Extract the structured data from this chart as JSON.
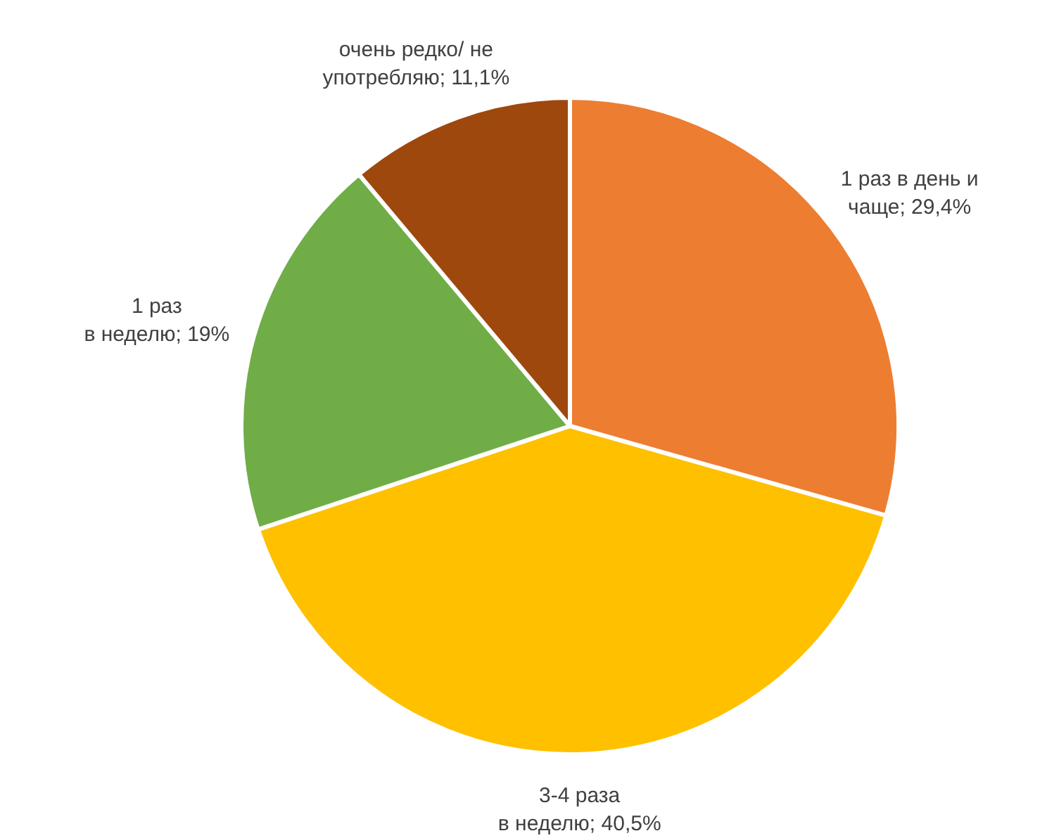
{
  "chart_data": {
    "type": "pie",
    "categories": [
      "1 раз в день и чаще",
      "3-4 раза в неделю",
      "1 раз в неделю",
      "очень редко/ не употребляю"
    ],
    "values": [
      29.4,
      40.5,
      19,
      11.1
    ],
    "value_labels": [
      "29,4%",
      "40,5%",
      "19%",
      "11,1%"
    ],
    "colors": [
      "#ed7d31",
      "#ffc000",
      "#70ad47",
      "#9e480e"
    ],
    "legend": false
  }
}
